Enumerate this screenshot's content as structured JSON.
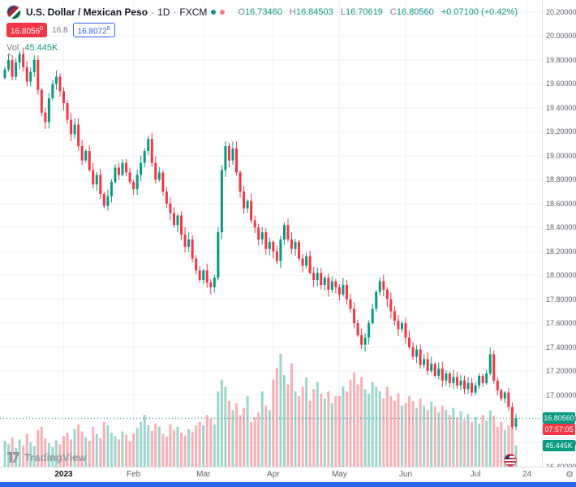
{
  "header": {
    "symbol_title": "U.S. Dollar / Mexican Peso",
    "sep": "·",
    "interval": "1D",
    "exchange": "FXCM",
    "ohlc_labels": {
      "o": "O",
      "h": "H",
      "l": "L",
      "c": "C"
    },
    "ohlc": {
      "o": "16.73460",
      "h": "16.84503",
      "l": "16.70619",
      "c": "16.80560"
    },
    "change": "+0.07100 (+0.42%)",
    "vol_label": "Vol",
    "vol_value": "45.445K"
  },
  "trade_buttons": {
    "sell_main": "16.8056",
    "sell_sup": "0",
    "spread": "16.8",
    "buy_main": "16.8072",
    "buy_sup": "8"
  },
  "scale": {
    "price_ticks": [
      "20.20000",
      "20.00000",
      "19.80000",
      "19.60000",
      "19.40000",
      "19.20000",
      "19.00000",
      "18.80000",
      "18.60000",
      "18.40000",
      "18.20000",
      "18.00000",
      "17.80000",
      "17.60000",
      "17.40000",
      "17.20000",
      "17.00000",
      "16.80000",
      "16.60000",
      "16.40000"
    ],
    "last_price": "16.80560",
    "countdown": "07:57:05",
    "volume_badge": "45.445K"
  },
  "time_axis": {
    "ticks": [
      {
        "label": "2023",
        "i": 16,
        "year": true
      },
      {
        "label": "Feb",
        "i": 35
      },
      {
        "label": "Mar",
        "i": 54
      },
      {
        "label": "Apr",
        "i": 73
      },
      {
        "label": "May",
        "i": 91
      },
      {
        "label": "Jun",
        "i": 109
      },
      {
        "label": "Jul",
        "i": 128
      },
      {
        "label": "24",
        "i": 142
      }
    ]
  },
  "watermark": {
    "text": "TradingView"
  },
  "icons": {
    "collapse_arrow": "^",
    "gear": "⚙"
  },
  "colors": {
    "up": "#089981",
    "down": "#f23645",
    "accent_blue": "#2962ff",
    "grid": "#f0f3fa",
    "axis_text": "#5d606b",
    "title_text": "#131722",
    "watermark": "#9598a1"
  },
  "chart_data": {
    "type": "candlestick",
    "title": "U.S. Dollar / Mexican Peso, 1D, FXCM",
    "interval": "1D",
    "x_range": "Dec 2022 - Jul 24 2023, daily candles",
    "ylim": [
      16.4,
      20.2
    ],
    "y_tick_step": 0.2,
    "legend_position": "top-left",
    "grid": true,
    "volume_pane": true,
    "first_open": 19.65,
    "closes": [
      19.72,
      19.8,
      19.66,
      19.78,
      19.85,
      19.74,
      19.62,
      19.7,
      19.8,
      19.55,
      19.36,
      19.28,
      19.48,
      19.6,
      19.66,
      19.54,
      19.44,
      19.3,
      19.18,
      19.26,
      19.08,
      18.96,
      19.04,
      18.88,
      18.76,
      18.84,
      18.68,
      18.58,
      18.66,
      18.78,
      18.9,
      18.84,
      18.94,
      18.86,
      18.78,
      18.72,
      18.84,
      18.94,
      19.04,
      19.14,
      18.94,
      18.8,
      18.86,
      18.7,
      18.6,
      18.52,
      18.42,
      18.5,
      18.34,
      18.24,
      18.3,
      18.14,
      18.04,
      17.96,
      18.04,
      17.94,
      17.9,
      17.98,
      18.36,
      18.88,
      19.08,
      18.96,
      19.06,
      18.86,
      18.7,
      18.56,
      18.62,
      18.46,
      18.4,
      18.3,
      18.36,
      18.22,
      18.28,
      18.2,
      18.12,
      18.3,
      18.42,
      18.3,
      18.22,
      18.28,
      18.14,
      18.08,
      18.16,
      18.02,
      17.96,
      18.02,
      17.92,
      17.98,
      17.88,
      17.95,
      17.9,
      17.84,
      17.92,
      17.8,
      17.72,
      17.6,
      17.5,
      17.42,
      17.48,
      17.6,
      17.72,
      17.86,
      17.95,
      17.88,
      17.8,
      17.7,
      17.62,
      17.55,
      17.6,
      17.48,
      17.4,
      17.32,
      17.38,
      17.25,
      17.3,
      17.2,
      17.26,
      17.16,
      17.22,
      17.12,
      17.18,
      17.1,
      17.15,
      17.08,
      17.12,
      17.05,
      17.1,
      17.02,
      17.08,
      17.16,
      17.1,
      17.18,
      17.34,
      17.12,
      17.04,
      16.97,
      17.02,
      16.9,
      16.7346,
      16.8056
    ],
    "volumes_k": [
      55,
      48,
      62,
      40,
      58,
      45,
      70,
      52,
      44,
      78,
      85,
      60,
      50,
      42,
      56,
      48,
      65,
      72,
      58,
      80,
      90,
      75,
      62,
      55,
      85,
      70,
      60,
      95,
      88,
      72,
      65,
      58,
      75,
      68,
      54,
      70,
      82,
      95,
      110,
      88,
      76,
      92,
      85,
      70,
      64,
      90,
      78,
      85,
      72,
      66,
      80,
      74,
      88,
      95,
      88,
      110,
      102,
      90,
      160,
      185,
      170,
      140,
      120,
      135,
      110,
      125,
      150,
      95,
      105,
      115,
      160,
      130,
      120,
      185,
      210,
      240,
      195,
      175,
      220,
      160,
      150,
      170,
      190,
      140,
      165,
      180,
      155,
      145,
      160,
      135,
      150,
      150,
      170,
      160,
      185,
      200,
      175,
      190,
      165,
      155,
      180,
      170,
      160,
      145,
      170,
      150,
      140,
      155,
      130,
      135,
      150,
      140,
      125,
      145,
      130,
      120,
      138,
      128,
      115,
      130,
      120,
      110,
      125,
      105,
      118,
      100,
      112,
      95,
      105,
      92,
      110,
      98,
      120,
      108,
      85,
      95,
      78,
      88,
      96,
      45.445
    ],
    "last_candle": {
      "o": 16.7346,
      "h": 16.84503,
      "l": 16.70619,
      "c": 16.8056
    },
    "last_volume_k": 45.445
  }
}
